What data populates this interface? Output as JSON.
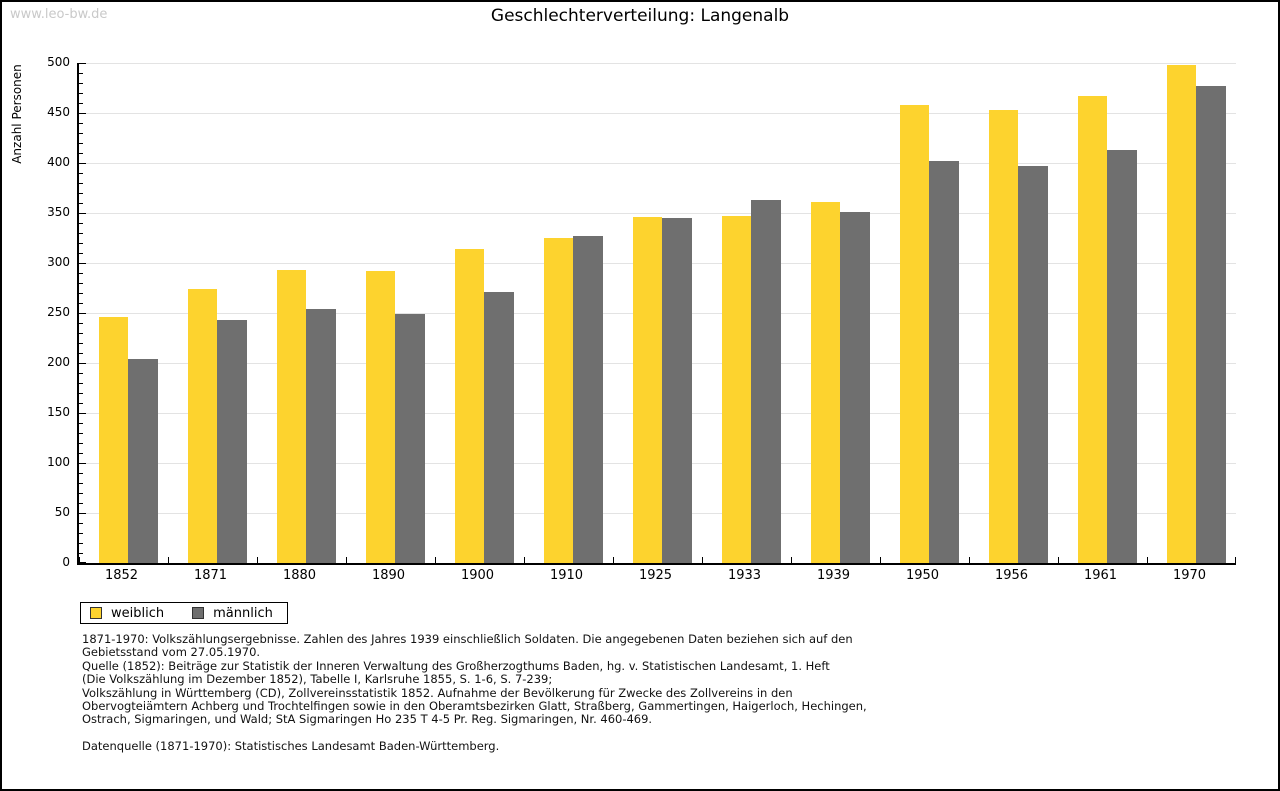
{
  "watermark": "www.leo-bw.de",
  "header": {
    "title": "Geschlechterverteilung: Langenalb"
  },
  "chart_data": {
    "type": "bar",
    "title": "Geschlechterverteilung: Langenalb",
    "xlabel": "",
    "ylabel": "Anzahl Personen",
    "ylim": [
      0,
      500
    ],
    "ytick_step": 50,
    "minor_tick_step": 10,
    "grid": true,
    "legend_position": "bottom-left",
    "categories": [
      "1852",
      "1871",
      "1880",
      "1890",
      "1900",
      "1910",
      "1925",
      "1933",
      "1939",
      "1950",
      "1956",
      "1961",
      "1970"
    ],
    "series": [
      {
        "name": "weiblich",
        "color": "#FDD32E",
        "values": [
          246,
          274,
          293,
          292,
          314,
          325,
          346,
          347,
          361,
          458,
          453,
          467,
          498
        ]
      },
      {
        "name": "männlich",
        "color": "#6F6F6F",
        "values": [
          204,
          243,
          254,
          249,
          271,
          327,
          345,
          363,
          351,
          402,
          397,
          413,
          477
        ]
      }
    ]
  },
  "legend": {
    "items": [
      {
        "label": "weiblich",
        "color": "#FDD32E"
      },
      {
        "label": "männlich",
        "color": "#6F6F6F"
      }
    ]
  },
  "footnotes": {
    "lines": [
      "1871-1970: Volkszählungsergebnisse. Zahlen des Jahres 1939 einschließlich Soldaten. Die angegebenen Daten beziehen sich auf den",
      "Gebietsstand vom 27.05.1970.",
      "Quelle (1852): Beiträge zur Statistik der Inneren Verwaltung des Großherzogthums Baden, hg. v. Statistischen Landesamt, 1. Heft",
      "(Die Volkszählung im Dezember 1852), Tabelle I, Karlsruhe 1855, S. 1-6, S. 7-239;",
      "Volkszählung in Württemberg (CD), Zollvereinsstatistik 1852. Aufnahme der Bevölkerung für Zwecke des Zollvereins in den",
      "Obervogteiämtern Achberg und Trochtelfingen sowie in den Oberamtsbezirken Glatt, Straßberg, Gammertingen, Haigerloch, Hechingen,",
      "Ostrach, Sigmaringen, und Wald; StA Sigmaringen Ho 235 T 4-5 Pr. Reg. Sigmaringen, Nr. 460-469.",
      "",
      "Datenquelle (1871-1970): Statistisches Landesamt Baden-Württemberg."
    ]
  }
}
